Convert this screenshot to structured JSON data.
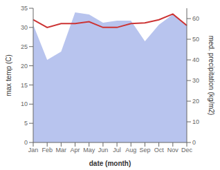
{
  "chart_data": {
    "type": "line",
    "categories": [
      "Jan",
      "Feb",
      "Mar",
      "Apr",
      "May",
      "Jun",
      "Jul",
      "Aug",
      "Sep",
      "Oct",
      "Nov",
      "Dec"
    ],
    "series": [
      {
        "type": "area",
        "axis": "y2",
        "color": "#b8c4ee",
        "values": [
          57,
          40,
          44,
          63,
          62,
          58,
          59,
          59,
          49,
          57,
          62,
          57
        ]
      },
      {
        "type": "line",
        "color": "#cc3333",
        "values": [
          32.0,
          30.0,
          31.0,
          31.0,
          31.5,
          30.0,
          30.0,
          31.0,
          31.2,
          32.0,
          33.5,
          30.5
        ]
      }
    ],
    "xlabel": "date (month)",
    "ylabel": "max temp (C)",
    "y2label": "med. precipitation (kg/m2)",
    "ylim": [
      0,
      35
    ],
    "yticks": [
      0,
      5,
      10,
      15,
      20,
      25,
      30,
      35
    ],
    "y2lim": [
      0,
      65
    ],
    "y2ticks": [
      0,
      10,
      20,
      30,
      40,
      50,
      60
    ],
    "grid": false
  }
}
